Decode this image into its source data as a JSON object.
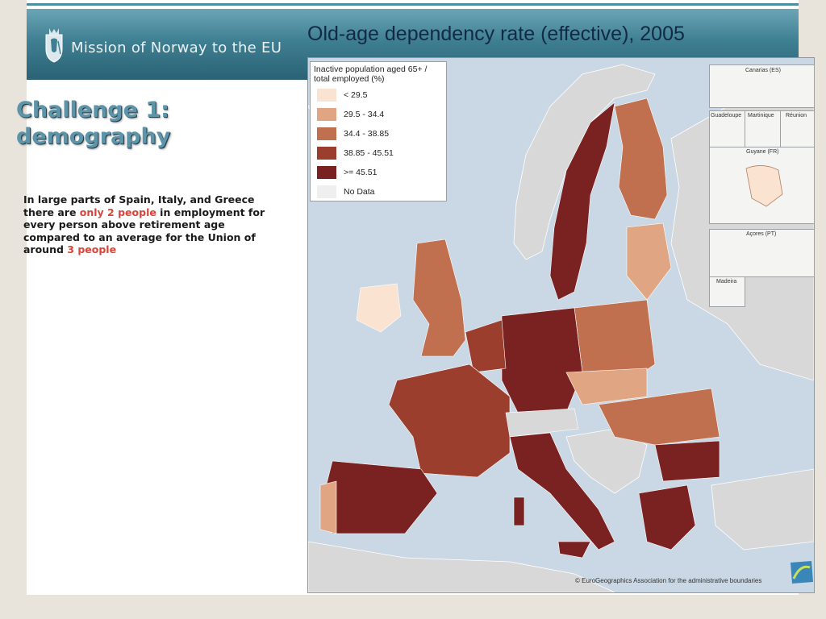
{
  "header": {
    "org_name": "Mission of Norway to the EU",
    "title": "Old-age dependency rate (effective), 2005"
  },
  "content": {
    "heading_line1": "Challenge 1:",
    "heading_line2": "demography",
    "para_part1": "In large parts of Spain, Italy, and Greece there are ",
    "para_hl1": "only 2 people",
    "para_part2": " in employment for every person above retirement age compared to an average for the Union of around ",
    "para_hl2": "3 people",
    "highlight_color": "#d9443a"
  },
  "legend": {
    "title": "Inactive population aged 65+ / total employed (%)",
    "items": [
      {
        "label": "< 29.5",
        "color": "#fbe3d1"
      },
      {
        "label": "29.5 - 34.4",
        "color": "#e0a583"
      },
      {
        "label": "34.4 - 38.85",
        "color": "#c0704f"
      },
      {
        "label": "38.85 - 45.51",
        "color": "#9c3e2e"
      },
      {
        "label": ">= 45.51",
        "color": "#7a2121"
      },
      {
        "label": "No Data",
        "color": "#efefef"
      }
    ]
  },
  "insets": {
    "canarias": "Canarias (ES)",
    "guadeloupe": "Guadeloupe",
    "martinique": "Martinique",
    "reunion": "Réunion",
    "guyane": "Guyane (FR)",
    "acores": "Açores (PT)",
    "madeira": "Madeira"
  },
  "credit": "© EuroGeographics Association for the administrative boundaries",
  "colors": {
    "sea": "#c9d8e4",
    "non_eu_land": "#d8d8d8",
    "header_dark": "#2a6274",
    "heading_blue": "#5d94a8"
  }
}
